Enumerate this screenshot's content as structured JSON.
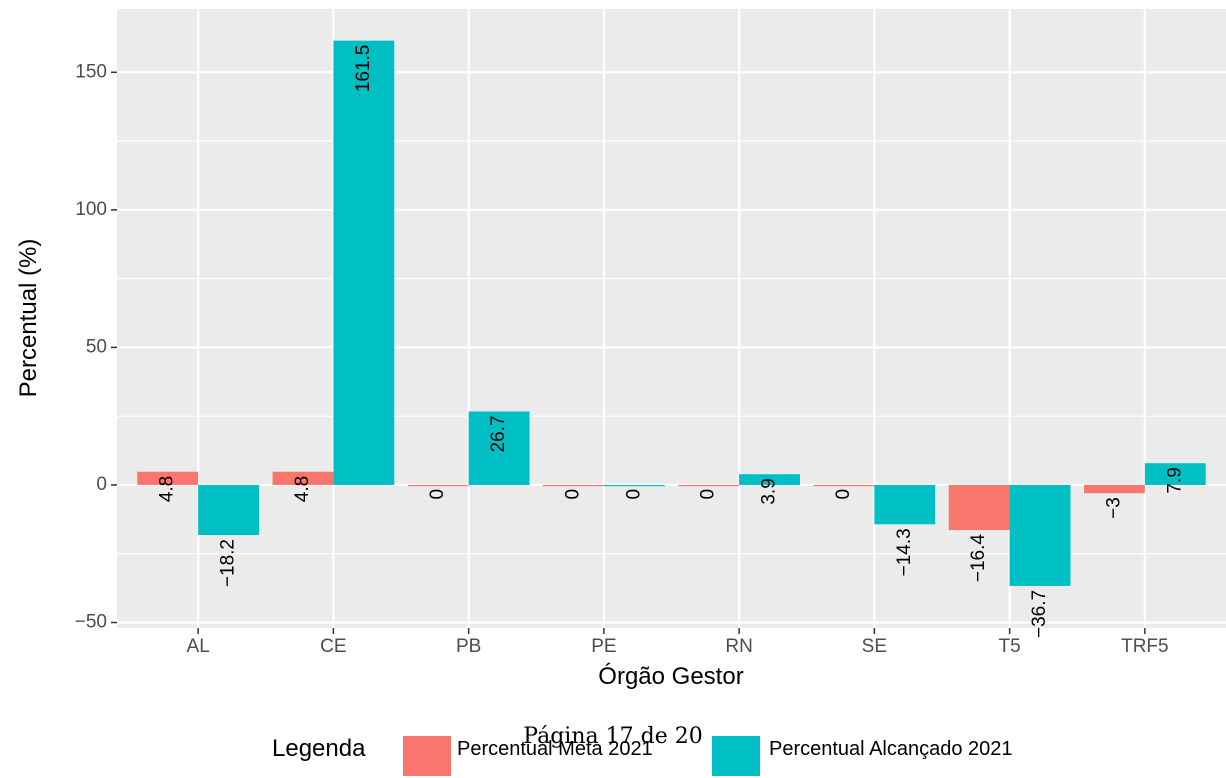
{
  "chart_data": {
    "type": "bar",
    "title": "",
    "xlabel": "Órgão Gestor",
    "ylabel": "Percentual (%)",
    "categories": [
      "AL",
      "CE",
      "PB",
      "PE",
      "RN",
      "SE",
      "T5",
      "TRF5"
    ],
    "series": [
      {
        "name": "Percentual Meta 2021",
        "color": "#F8766D",
        "values": [
          4.8,
          4.8,
          0,
          0,
          0,
          0,
          -16.4,
          -3
        ],
        "labels": [
          "4.8",
          "4.8",
          "0",
          "0",
          "0",
          "0",
          "−16.4",
          "−3"
        ]
      },
      {
        "name": "Percentual Alcançado 2021",
        "color": "#00BFC4",
        "values": [
          -18.2,
          161.5,
          26.7,
          0,
          3.9,
          -14.3,
          -36.7,
          7.9
        ],
        "labels": [
          "−18.2",
          "161.5",
          "26.7",
          "0",
          "3.9",
          "−14.3",
          "−36.7",
          "7.9"
        ]
      }
    ],
    "ylim": [
      -52,
      173
    ],
    "yticks": [
      -50,
      0,
      50,
      100,
      150
    ],
    "ytick_labels": [
      "−50",
      "0",
      "50",
      "100",
      "150"
    ],
    "grid": true,
    "panel_background": "#EBEBEB",
    "grid_color": "#FFFFFF",
    "legend_position": "bottom",
    "legend_title": "Legenda"
  },
  "footer": {
    "page_text": "Página 17 de 20"
  }
}
